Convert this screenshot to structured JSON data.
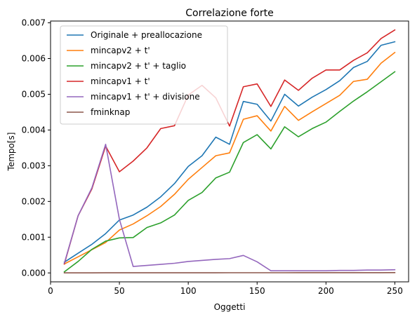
{
  "chart_data": {
    "type": "line",
    "title": "Correlazione forte",
    "xlabel": "Oggetti",
    "ylabel": "Tempo[s]",
    "xlim": [
      0,
      260
    ],
    "ylim": [
      -0.00025,
      0.00705
    ],
    "xticks": [
      0,
      50,
      100,
      150,
      200,
      250
    ],
    "xtick_labels": [
      "0",
      "50",
      "100",
      "150",
      "200",
      "250"
    ],
    "yticks": [
      0,
      0.001,
      0.002,
      0.003,
      0.004,
      0.005,
      0.006,
      0.007
    ],
    "ytick_labels": [
      "0.000",
      "0.001",
      "0.002",
      "0.003",
      "0.004",
      "0.005",
      "0.006",
      "0.007"
    ],
    "grid": false,
    "legend_position": "top-left",
    "x": [
      10,
      20,
      30,
      40,
      50,
      60,
      70,
      80,
      90,
      100,
      110,
      120,
      130,
      140,
      150,
      160,
      170,
      180,
      190,
      200,
      210,
      220,
      230,
      240,
      250
    ],
    "series": [
      {
        "name": "Originale + preallocazione",
        "color": "#1f77b4",
        "values": [
          0.0003,
          0.00055,
          0.0008,
          0.0011,
          0.00148,
          0.00162,
          0.00184,
          0.00213,
          0.0025,
          0.00298,
          0.00328,
          0.0038,
          0.0036,
          0.0048,
          0.00472,
          0.00425,
          0.005,
          0.00467,
          0.00492,
          0.00513,
          0.00538,
          0.00575,
          0.00592,
          0.00637,
          0.00647
        ]
      },
      {
        "name": "mincapv2 + t'",
        "color": "#ff7f0e",
        "values": [
          0.00025,
          0.00045,
          0.00065,
          0.00085,
          0.0012,
          0.00137,
          0.0016,
          0.00186,
          0.0022,
          0.00262,
          0.00295,
          0.00328,
          0.00336,
          0.0043,
          0.0044,
          0.00397,
          0.00466,
          0.00427,
          0.00451,
          0.00474,
          0.00497,
          0.00536,
          0.00542,
          0.00587,
          0.00617
        ]
      },
      {
        "name": "mincapv2 + t' + taglio",
        "color": "#2ca02c",
        "values": [
          3e-05,
          0.00032,
          0.00066,
          0.00089,
          0.00098,
          0.00099,
          0.00127,
          0.0014,
          0.00162,
          0.00203,
          0.00225,
          0.00266,
          0.00282,
          0.00365,
          0.00387,
          0.00347,
          0.00409,
          0.00381,
          0.00404,
          0.00422,
          0.00452,
          0.00481,
          0.00507,
          0.00535,
          0.00563
        ]
      },
      {
        "name": "mincapv1 + t'",
        "color": "#d62728",
        "values": [
          0.00025,
          0.0016,
          0.00235,
          0.00355,
          0.00283,
          0.00313,
          0.0035,
          0.00404,
          0.00412,
          0.00498,
          0.00525,
          0.0049,
          0.00411,
          0.00521,
          0.00529,
          0.00466,
          0.0054,
          0.00511,
          0.00545,
          0.00568,
          0.00568,
          0.00595,
          0.00616,
          0.00656,
          0.0068
        ]
      },
      {
        "name": "mincapv1 + t' + divisione",
        "color": "#9467bd",
        "values": [
          0.00027,
          0.0016,
          0.00238,
          0.0036,
          0.0015,
          0.00018,
          0.00021,
          0.00024,
          0.00027,
          0.00032,
          0.00035,
          0.00038,
          0.0004,
          0.00049,
          0.00031,
          6e-05,
          6e-05,
          6e-05,
          6e-05,
          6e-05,
          7e-05,
          7e-05,
          8e-05,
          8e-05,
          9e-05
        ]
      },
      {
        "name": "fminknap",
        "color": "#8c564b",
        "values": [
          2e-06,
          2e-06,
          2e-06,
          3e-06,
          3e-06,
          3e-06,
          3e-06,
          3e-06,
          4e-06,
          4e-06,
          4e-06,
          4e-06,
          5e-06,
          5e-06,
          5e-06,
          5e-06,
          5e-06,
          6e-06,
          6e-06,
          6e-06,
          6e-06,
          7e-06,
          7e-06,
          7e-06,
          8e-06
        ]
      }
    ]
  }
}
